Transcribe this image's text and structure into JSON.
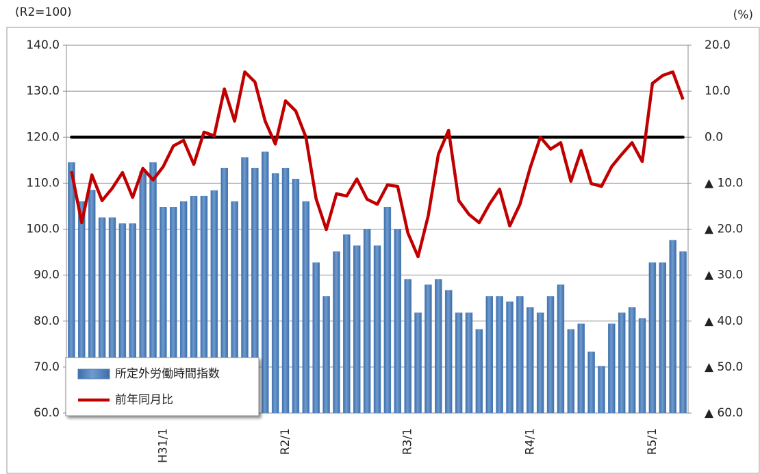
{
  "chart_data": {
    "type": "bar_line",
    "y_unit_label": "(R2=100)",
    "y2_unit_label": "(%)",
    "categories": [
      null,
      null,
      null,
      null,
      null,
      null,
      null,
      null,
      null,
      "H31/1",
      null,
      null,
      null,
      null,
      null,
      null,
      null,
      null,
      null,
      null,
      null,
      "R2/1",
      null,
      null,
      null,
      null,
      null,
      null,
      null,
      null,
      null,
      null,
      null,
      "R3/1",
      null,
      null,
      null,
      null,
      null,
      null,
      null,
      null,
      null,
      null,
      null,
      "R4/1",
      null,
      null,
      null,
      null,
      null,
      null,
      null,
      null,
      null,
      null,
      null,
      "R5/1",
      null,
      null,
      null
    ],
    "ylim": [
      60,
      140
    ],
    "yticks": [
      {
        "value": 60,
        "label": "60.0"
      },
      {
        "value": 70,
        "label": "70.0"
      },
      {
        "value": 80,
        "label": "80.0"
      },
      {
        "value": 90,
        "label": "90.0"
      },
      {
        "value": 100,
        "label": "100.0"
      },
      {
        "value": 110,
        "label": "110.0"
      },
      {
        "value": 120,
        "label": "120.0"
      },
      {
        "value": 130,
        "label": "130.0"
      },
      {
        "value": 140,
        "label": "140.0"
      }
    ],
    "y2lim": [
      -60,
      20
    ],
    "y2ticks": [
      {
        "value": -60,
        "label": "▲ 60.0"
      },
      {
        "value": -50,
        "label": "▲ 50.0"
      },
      {
        "value": -40,
        "label": "▲ 40.0"
      },
      {
        "value": -30,
        "label": "▲ 30.0"
      },
      {
        "value": -20,
        "label": "▲ 20.0"
      },
      {
        "value": -10,
        "label": "▲ 10.0"
      },
      {
        "value": 0,
        "label": "0.0"
      },
      {
        "value": 10,
        "label": "10.0"
      },
      {
        "value": 20,
        "label": "20.0"
      }
    ],
    "grid": true,
    "reference_line": {
      "axis": "y2",
      "value": 0,
      "color": "#000000"
    },
    "legend": "bottom-left",
    "series": [
      {
        "name": "所定外労働時間指数",
        "type": "bar",
        "color": "#4f81bd",
        "values": [
          114.5,
          106,
          108.5,
          102.5,
          102.5,
          101.2,
          101.2,
          112.5,
          114.5,
          104.8,
          104.8,
          106,
          107.2,
          107.2,
          108.4,
          113.3,
          106,
          115.6,
          113.3,
          116.8,
          112.1,
          113.3,
          110.9,
          106,
          92.7,
          85.4,
          95.1,
          98.8,
          96.4,
          100,
          96.4,
          104.8,
          100,
          89.1,
          81.8,
          87.9,
          89.1,
          86.7,
          81.8,
          81.8,
          78.2,
          85.4,
          85.4,
          84.2,
          85.4,
          83,
          81.8,
          85.4,
          87.9,
          78.2,
          79.4,
          73.3,
          70.2,
          79.4,
          81.8,
          83,
          80.6,
          92.7,
          92.7,
          97.6,
          95.1
        ]
      },
      {
        "name": "前年同月比",
        "type": "line",
        "axis": "y2",
        "color": "#c00000",
        "values": [
          -7.4,
          -18.6,
          -8.2,
          -13.8,
          -11.1,
          -7.7,
          -13.1,
          -6.8,
          -9.3,
          -6.4,
          -1.9,
          -0.7,
          -5.9,
          1.1,
          0.3,
          10.5,
          3.5,
          14.2,
          12,
          3.5,
          -1.5,
          7.9,
          5.7,
          0,
          -13.4,
          -20.1,
          -12.3,
          -12.8,
          -9.1,
          -13.5,
          -14.6,
          -10.4,
          -10.7,
          -20.8,
          -26,
          -17.1,
          -3.7,
          1.5,
          -13.8,
          -16.8,
          -18.6,
          -14.6,
          -11.3,
          -19.3,
          -14.6,
          -6.7,
          0,
          -2.6,
          -1.2,
          -9.6,
          -2.9,
          -10.1,
          -10.7,
          -6.4,
          -3.7,
          -1.2,
          -5.3,
          11.7,
          13.4,
          14.2,
          8.2
        ]
      }
    ]
  }
}
